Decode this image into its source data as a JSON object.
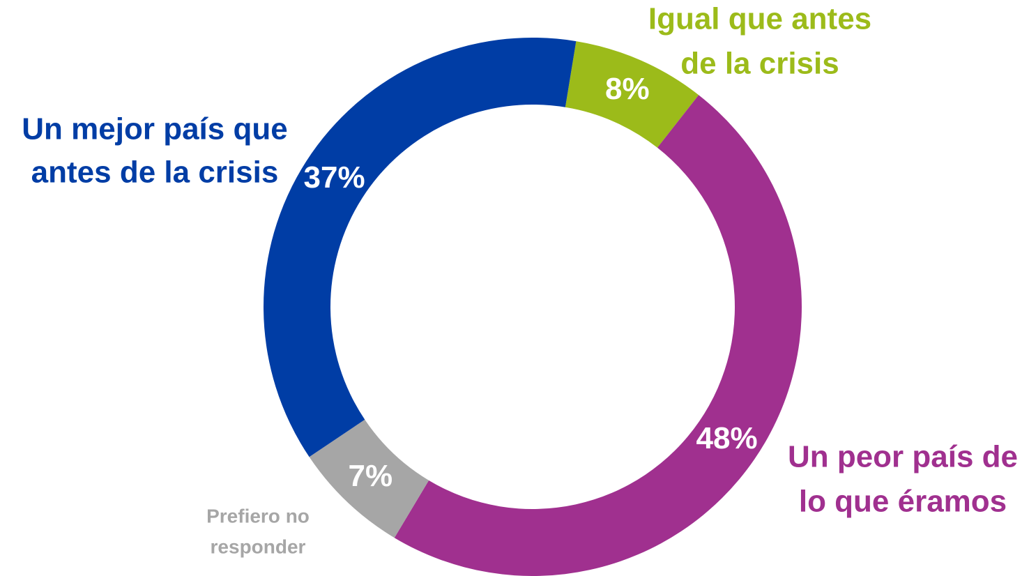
{
  "chart_data": {
    "type": "donut",
    "start_angle": 9.3,
    "categories": [
      [
        "Igual que antes",
        "de la crisis"
      ],
      [
        "Un peor país de",
        "lo que éramos"
      ],
      [
        "Prefiero no",
        "responder"
      ],
      [
        "Un mejor país que",
        "antes de la crisis"
      ]
    ],
    "values": [
      8,
      48,
      7,
      37
    ],
    "value_labels": [
      "8%",
      "48%",
      "7%",
      "37%"
    ],
    "colors": [
      "#9cbb1a",
      "#a0308f",
      "#a6a6a6",
      "#003da5"
    ]
  }
}
